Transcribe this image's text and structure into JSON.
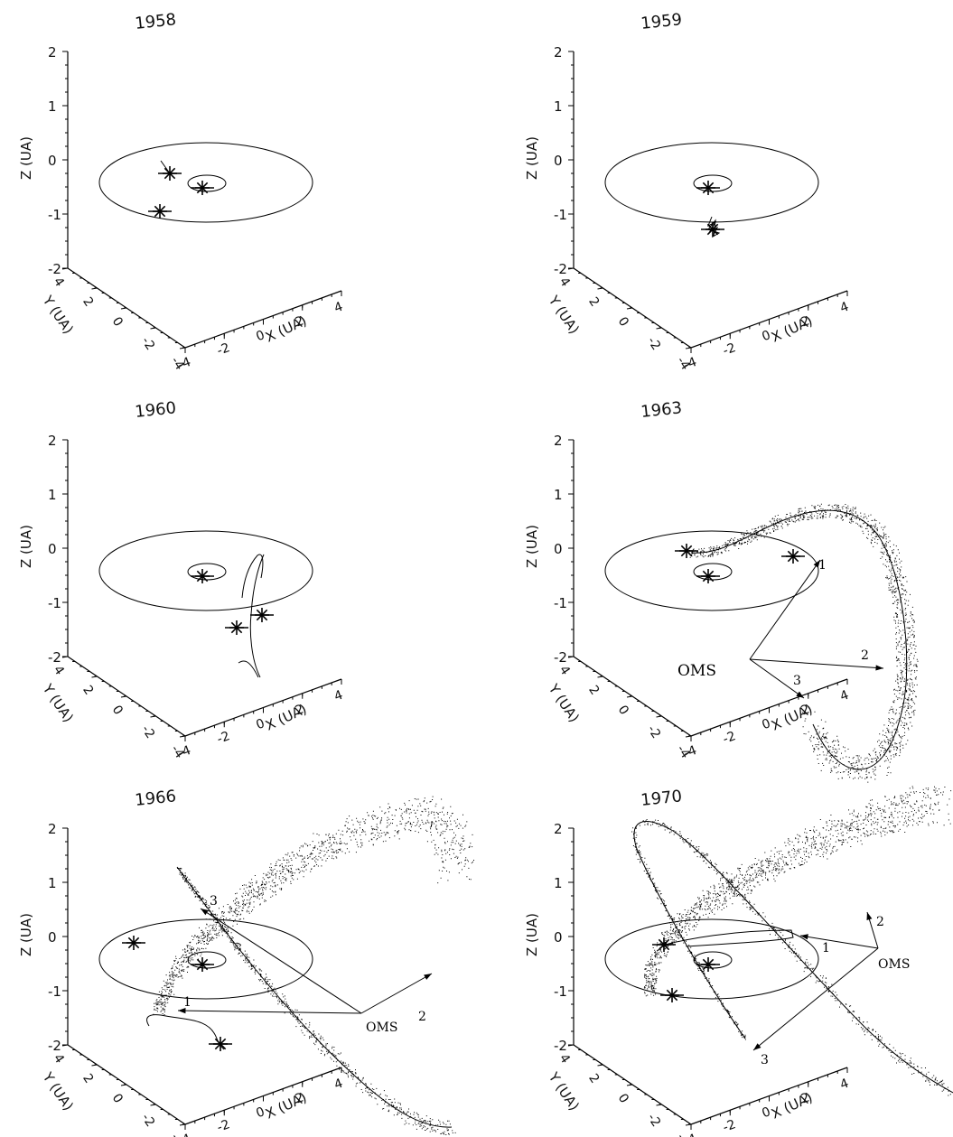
{
  "panels": [
    {
      "id": "1958",
      "title": "1958",
      "z_ticks": [
        "2",
        "1",
        "0",
        "-1",
        "-2"
      ],
      "y_ticks": [
        "4",
        "2",
        "0",
        "-2",
        "-4"
      ],
      "x_ticks": [
        "-4",
        "-2",
        "0",
        "2",
        "4"
      ],
      "z_label": "Z (UA)",
      "y_label": "Y (UA)",
      "x_label": "X (UA)",
      "annotations": []
    },
    {
      "id": "1959",
      "title": "1959",
      "z_ticks": [
        "2",
        "1",
        "0",
        "-1",
        "-2"
      ],
      "y_ticks": [
        "4",
        "2",
        "0",
        "-2",
        "-4"
      ],
      "x_ticks": [
        "-4",
        "-2",
        "0",
        "2",
        "4"
      ],
      "z_label": "Z (UA)",
      "y_label": "Y (UA)",
      "x_label": "X (UA)",
      "annotations": []
    },
    {
      "id": "1960",
      "title": "1960",
      "z_ticks": [
        "2",
        "1",
        "0",
        "-1",
        "-2"
      ],
      "y_ticks": [
        "4",
        "2",
        "0",
        "-2",
        "-4"
      ],
      "x_ticks": [
        "-4",
        "-2",
        "0",
        "2",
        "4"
      ],
      "z_label": "Z (UA)",
      "y_label": "Y (UA)",
      "x_label": "X (UA)",
      "annotations": []
    },
    {
      "id": "1963",
      "title": "1963",
      "z_ticks": [
        "2",
        "1",
        "0",
        "-1",
        "-2"
      ],
      "y_ticks": [
        "4",
        "2",
        "0",
        "-2",
        "-4"
      ],
      "x_ticks": [
        "-4",
        "-2",
        "0",
        "2",
        "4"
      ],
      "z_label": "Z (UA)",
      "y_label": "Y (UA)",
      "x_label": "X (UA)",
      "annotations": [
        "OMS",
        "1",
        "2",
        "3"
      ]
    },
    {
      "id": "1966",
      "title": "1966",
      "z_ticks": [
        "2",
        "1",
        "0",
        "-1",
        "-2"
      ],
      "y_ticks": [
        "4",
        "2",
        "0",
        "-2",
        "-4"
      ],
      "x_ticks": [
        "-4",
        "-2",
        "0",
        "2",
        "4"
      ],
      "z_label": "Z (UA)",
      "y_label": "Y (UA)",
      "x_label": "X (UA)",
      "annotations": [
        "OMS",
        "1",
        "2",
        "3"
      ]
    },
    {
      "id": "1970",
      "title": "1970",
      "z_ticks": [
        "2",
        "1",
        "0",
        "-1",
        "-2"
      ],
      "y_ticks": [
        "4",
        "2",
        "0",
        "-2",
        "-4"
      ],
      "x_ticks": [
        "-4",
        "-2",
        "0",
        "2",
        "4"
      ],
      "z_label": "Z (UA)",
      "y_label": "Y (UA)",
      "x_label": "X (UA)",
      "annotations": [
        "OMS",
        "1",
        "2",
        "3"
      ]
    }
  ]
}
